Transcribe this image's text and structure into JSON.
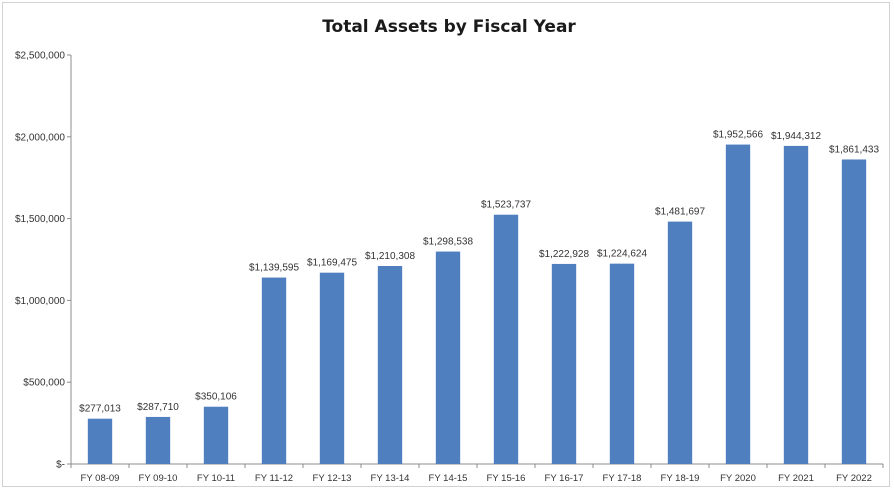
{
  "chart_data": {
    "type": "bar",
    "title": "Total Assets by Fiscal Year",
    "xlabel": "",
    "ylabel": "",
    "ylim": [
      0,
      2500000
    ],
    "ytick_values": [
      0,
      500000,
      1000000,
      1500000,
      2000000,
      2500000
    ],
    "ytick_labels": [
      "$-",
      "$500,000",
      "$1,000,000",
      "$1,500,000",
      "$2,000,000",
      "$2,500,000"
    ],
    "grid": false,
    "legend": "none",
    "bar_color": "#4f7fbe",
    "categories": [
      "FY 08-09",
      "FY 09-10",
      "FY 10-11",
      "FY 11-12",
      "FY 12-13",
      "FY 13-14",
      "FY 14-15",
      "FY 15-16",
      "FY 16-17",
      "FY 17-18",
      "FY 18-19",
      "FY 2020",
      "FY 2021",
      "FY 2022"
    ],
    "values": [
      277013,
      287710,
      350106,
      1139595,
      1169475,
      1210308,
      1298538,
      1523737,
      1222928,
      1224624,
      1481697,
      1952566,
      1944312,
      1861433
    ],
    "data_labels": [
      "$277,013",
      "$287,710",
      "$350,106",
      "$1,139,595",
      "$1,169,475",
      "$1,210,308",
      "$1,298,538",
      "$1,523,737",
      "$1,222,928",
      "$1,224,624",
      "$1,481,697",
      "$1,952,566",
      "$1,944,312",
      "$1,861,433"
    ]
  }
}
